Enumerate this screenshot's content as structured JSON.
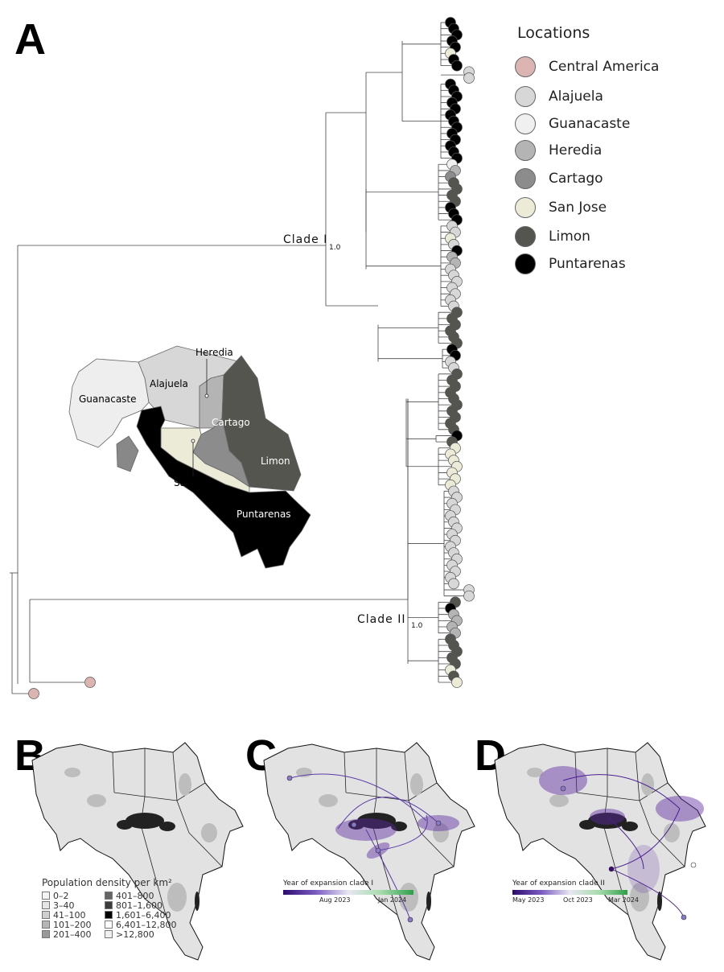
{
  "panels": {
    "a": "A",
    "b": "B",
    "c": "C",
    "d": "D"
  },
  "legend": {
    "title": "Locations",
    "items": [
      {
        "label": "Central America",
        "color": "#dcb4b2"
      },
      {
        "label": "Alajuela",
        "color": "#d7d7d7"
      },
      {
        "label": "Guanacaste",
        "color": "#f0f0f0"
      },
      {
        "label": "Heredia",
        "color": "#b4b4b4"
      },
      {
        "label": "Cartago",
        "color": "#8c8c8c"
      },
      {
        "label": "San Jose",
        "color": "#ecebd8"
      },
      {
        "label": "Limon",
        "color": "#55554f"
      },
      {
        "label": "Puntarenas",
        "color": "#000000"
      }
    ]
  },
  "tree": {
    "clade1": {
      "label": "Clade I",
      "support": "1.0"
    },
    "clade2": {
      "label": "Clade II",
      "support": "1.0"
    },
    "tips": [
      "P",
      "P",
      "P",
      "P",
      "P",
      "SJ",
      "P",
      "P",
      "A",
      "A",
      "P",
      "P",
      "P",
      "P",
      "P",
      "P",
      "P",
      "P",
      "P",
      "P",
      "P",
      "P",
      "P",
      "G",
      "H",
      "C",
      "L",
      "L",
      "L",
      "L",
      "P",
      "P",
      "P",
      "A",
      "A",
      "SJ",
      "A",
      "P",
      "H",
      "H",
      "A",
      "A",
      "A",
      "A",
      "A",
      "A",
      "A",
      "L",
      "L",
      "L",
      "L",
      "L",
      "L",
      "P",
      "P",
      "A",
      "A",
      "L",
      "L",
      "L",
      "L",
      "L",
      "L",
      "L",
      "L",
      "L",
      "L",
      "P",
      "L",
      "SJ",
      "SJ",
      "SJ",
      "SJ",
      "SJ",
      "SJ",
      "SJ",
      "A",
      "A",
      "A",
      "A",
      "A",
      "A",
      "A",
      "A",
      "A",
      "A",
      "A",
      "A",
      "A",
      "A",
      "A",
      "A",
      "A",
      "A",
      "L",
      "P",
      "H",
      "H",
      "H",
      "H",
      "L",
      "L",
      "L",
      "L",
      "L",
      "SJ",
      "L",
      "SJ"
    ],
    "outgroup": [
      "CA",
      "CA"
    ]
  },
  "map_a": {
    "labels": {
      "guanacaste": "Guanacaste",
      "alajuela": "Alajuela",
      "heredia": "Heredia",
      "cartago": "Cartago",
      "limon": "Limon",
      "san_jose": "San Jose",
      "puntarenas": "Puntarenas"
    }
  },
  "map_b": {
    "legend_title": "Population density per km²",
    "classes": [
      {
        "label": "0–2",
        "color": "#f4f4f4"
      },
      {
        "label": "3–40",
        "color": "#e6e6e6"
      },
      {
        "label": "41–100",
        "color": "#cfcfcf"
      },
      {
        "label": "101–200",
        "color": "#b5b5b5"
      },
      {
        "label": "201–400",
        "color": "#999999"
      },
      {
        "label": "401–800",
        "color": "#666666"
      },
      {
        "label": "801–1,600",
        "color": "#3c3c3c"
      },
      {
        "label": "1,601–6,400",
        "color": "#000000"
      },
      {
        "label": "6,401–12,800",
        "color": "#ffffff"
      },
      {
        "label": ">12,800",
        "color": "#f0f0f0"
      }
    ]
  },
  "map_c": {
    "colorbar_title": "Year of expansion clade I",
    "ticks": [
      "Aug 2023",
      "Jan 2024"
    ]
  },
  "map_d": {
    "colorbar_title": "Year of expansion clade II",
    "ticks": [
      "May 2023",
      "Oct 2023",
      "Mar 2024"
    ]
  },
  "colors": {
    "purple": "#3d0a78",
    "green": "#2e9e48",
    "map_gray": "#dcdcdc"
  }
}
